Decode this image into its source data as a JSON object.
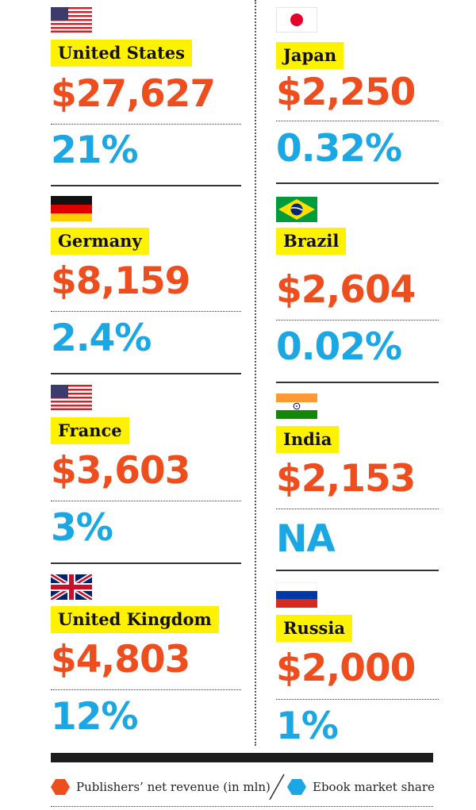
{
  "colors": {
    "revenue": "#ee4e1d",
    "share": "#1aa7e3",
    "label_bg": "#fff200"
  },
  "chart_data": {
    "type": "table",
    "columns": [
      "Publishers' net revenue (in mln)",
      "Ebook market share"
    ],
    "rows": [
      {
        "country": "United States",
        "flag": "us-flag-icon",
        "revenue": "$27,627",
        "share": "21%"
      },
      {
        "country": "Germany",
        "flag": "germany-flag-icon",
        "revenue": "$8,159",
        "share": "2.4%"
      },
      {
        "country": "France",
        "flag": "us-flag-icon",
        "revenue": "$3,603",
        "share": "3%"
      },
      {
        "country": "United Kingdom",
        "flag": "uk-flag-icon",
        "revenue": "$4,803",
        "share": "12%"
      },
      {
        "country": "Japan",
        "flag": "japan-flag-icon",
        "revenue": "$2,250",
        "share": "0.32%"
      },
      {
        "country": "Brazil",
        "flag": "brazil-flag-icon",
        "revenue": "$2,604",
        "share": "0.02%"
      },
      {
        "country": "India",
        "flag": "india-flag-icon",
        "revenue": "$2,153",
        "share": "NA"
      },
      {
        "country": "Russia",
        "flag": "russia-flag-icon",
        "revenue": "$2,000",
        "share": "1%"
      }
    ]
  },
  "legend": {
    "revenue_label": "Publishers’ net revenue (in mln)",
    "share_label": "Ebook market share",
    "revenue_icon": "orange-hexagon-icon",
    "share_icon": "blue-hexagon-icon"
  }
}
